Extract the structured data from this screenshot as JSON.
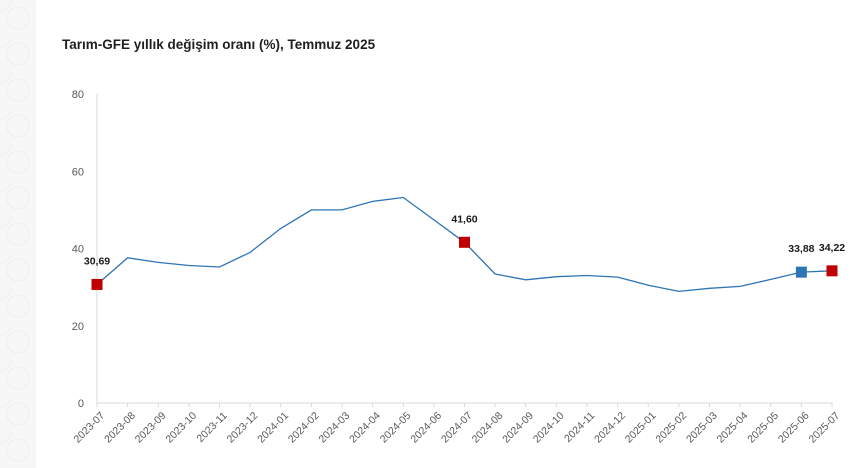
{
  "title": "Tarım-GFE yıllık değişim oranı (%), Temmuz 2025",
  "colors": {
    "line": "#2e75b6",
    "marker_highlight": "#c00000",
    "marker_latest": "#2e75b6",
    "axis": "#d9d9d9",
    "tick_text": "#595959"
  },
  "chart_data": {
    "type": "line",
    "title": "Tarım-GFE yıllık değişim oranı (%), Temmuz 2025",
    "xlabel": "",
    "ylabel": "",
    "ylim": [
      0,
      80
    ],
    "yticks": [
      0,
      20,
      40,
      60,
      80
    ],
    "grid": false,
    "categories": [
      "2023-07",
      "2023-08",
      "2023-09",
      "2023-10",
      "2023-11",
      "2023-12",
      "2024-01",
      "2024-02",
      "2024-03",
      "2024-04",
      "2024-05",
      "2024-06",
      "2024-07",
      "2024-08",
      "2024-09",
      "2024-10",
      "2024-11",
      "2024-12",
      "2025-01",
      "2025-02",
      "2025-03",
      "2025-04",
      "2025-05",
      "2025-06",
      "2025-07"
    ],
    "series": [
      {
        "values": [
          30.69,
          37.6,
          36.4,
          35.6,
          35.2,
          39.0,
          45.2,
          50.0,
          50.0,
          52.2,
          53.2,
          47.4,
          41.6,
          33.4,
          31.9,
          32.7,
          33.0,
          32.6,
          30.5,
          28.9,
          29.7,
          30.2,
          32.0,
          33.88,
          34.22
        ]
      }
    ],
    "markers": [
      {
        "index": 0,
        "label": "30,69",
        "color": "#c00000"
      },
      {
        "index": 12,
        "label": "41,60",
        "color": "#c00000"
      },
      {
        "index": 23,
        "label": "33,88",
        "color": "#2e75b6"
      },
      {
        "index": 24,
        "label": "34,22",
        "color": "#c00000"
      }
    ]
  }
}
